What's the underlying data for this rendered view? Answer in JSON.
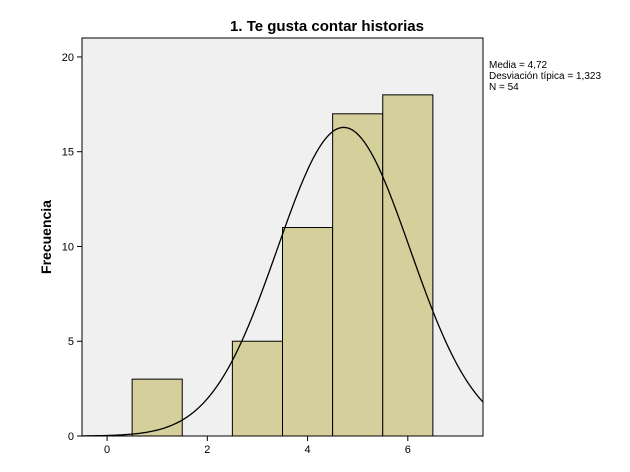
{
  "chart_data": {
    "type": "bar",
    "title": "1. Te gusta contar historias",
    "xlabel": "",
    "ylabel": "Frecuencia",
    "xlim": [
      -0.5,
      7.5
    ],
    "ylim": [
      0,
      21
    ],
    "x_ticks": [
      "0",
      "2",
      "4",
      "6"
    ],
    "y_ticks": [
      "0",
      "5",
      "10",
      "15",
      "20"
    ],
    "bins": [
      {
        "center": 1,
        "width": 1,
        "value": 3
      },
      {
        "center": 2,
        "width": 1,
        "value": 0
      },
      {
        "center": 3,
        "width": 1,
        "value": 5
      },
      {
        "center": 4,
        "width": 1,
        "value": 11
      },
      {
        "center": 5,
        "width": 1,
        "value": 17
      },
      {
        "center": 6,
        "width": 1,
        "value": 18
      }
    ],
    "normal_curve": {
      "mean": 4.72,
      "sd": 1.323,
      "n": 54
    },
    "stats": [
      "Media = 4,72",
      "Desviación típica = 1,323",
      "N = 54"
    ],
    "colors": {
      "plot_background": "#f0f0f0",
      "bar_fill": "#d4cf9b",
      "bar_stroke": "#000000",
      "curve": "#000000"
    },
    "grid": false,
    "legend": "right"
  }
}
